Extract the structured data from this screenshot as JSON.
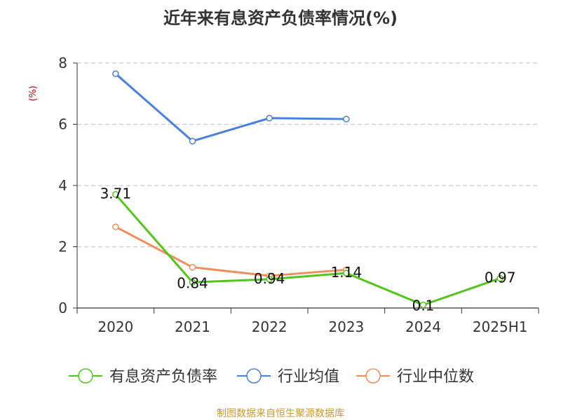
{
  "chart_data": {
    "type": "line",
    "title": "近年来有息资产负债率情况(%)",
    "ylabel": "(%)",
    "categories": [
      "2020",
      "2021",
      "2022",
      "2023",
      "2024",
      "2025H1"
    ],
    "ylim": [
      0,
      8
    ],
    "yticks": [
      "0",
      "2",
      "4",
      "6",
      "8"
    ],
    "grid": true,
    "legend_position": "bottom",
    "series": [
      {
        "name": "有息资产负债率",
        "color": "#52c41a",
        "values": [
          3.71,
          0.84,
          0.94,
          1.14,
          0.1,
          0.97
        ],
        "labels": [
          "3.71",
          "0.84",
          "0.94",
          "1.14",
          "0.1",
          "0.97"
        ]
      },
      {
        "name": "行业均值",
        "color": "#4a7fdc",
        "values": [
          7.65,
          5.45,
          6.2,
          6.17,
          null,
          null
        ]
      },
      {
        "name": "行业中位数",
        "color": "#f28e5b",
        "values": [
          2.65,
          1.33,
          1.05,
          1.25,
          null,
          null
        ]
      }
    ]
  },
  "source_text": "制图数据来自恒生聚源数据库"
}
